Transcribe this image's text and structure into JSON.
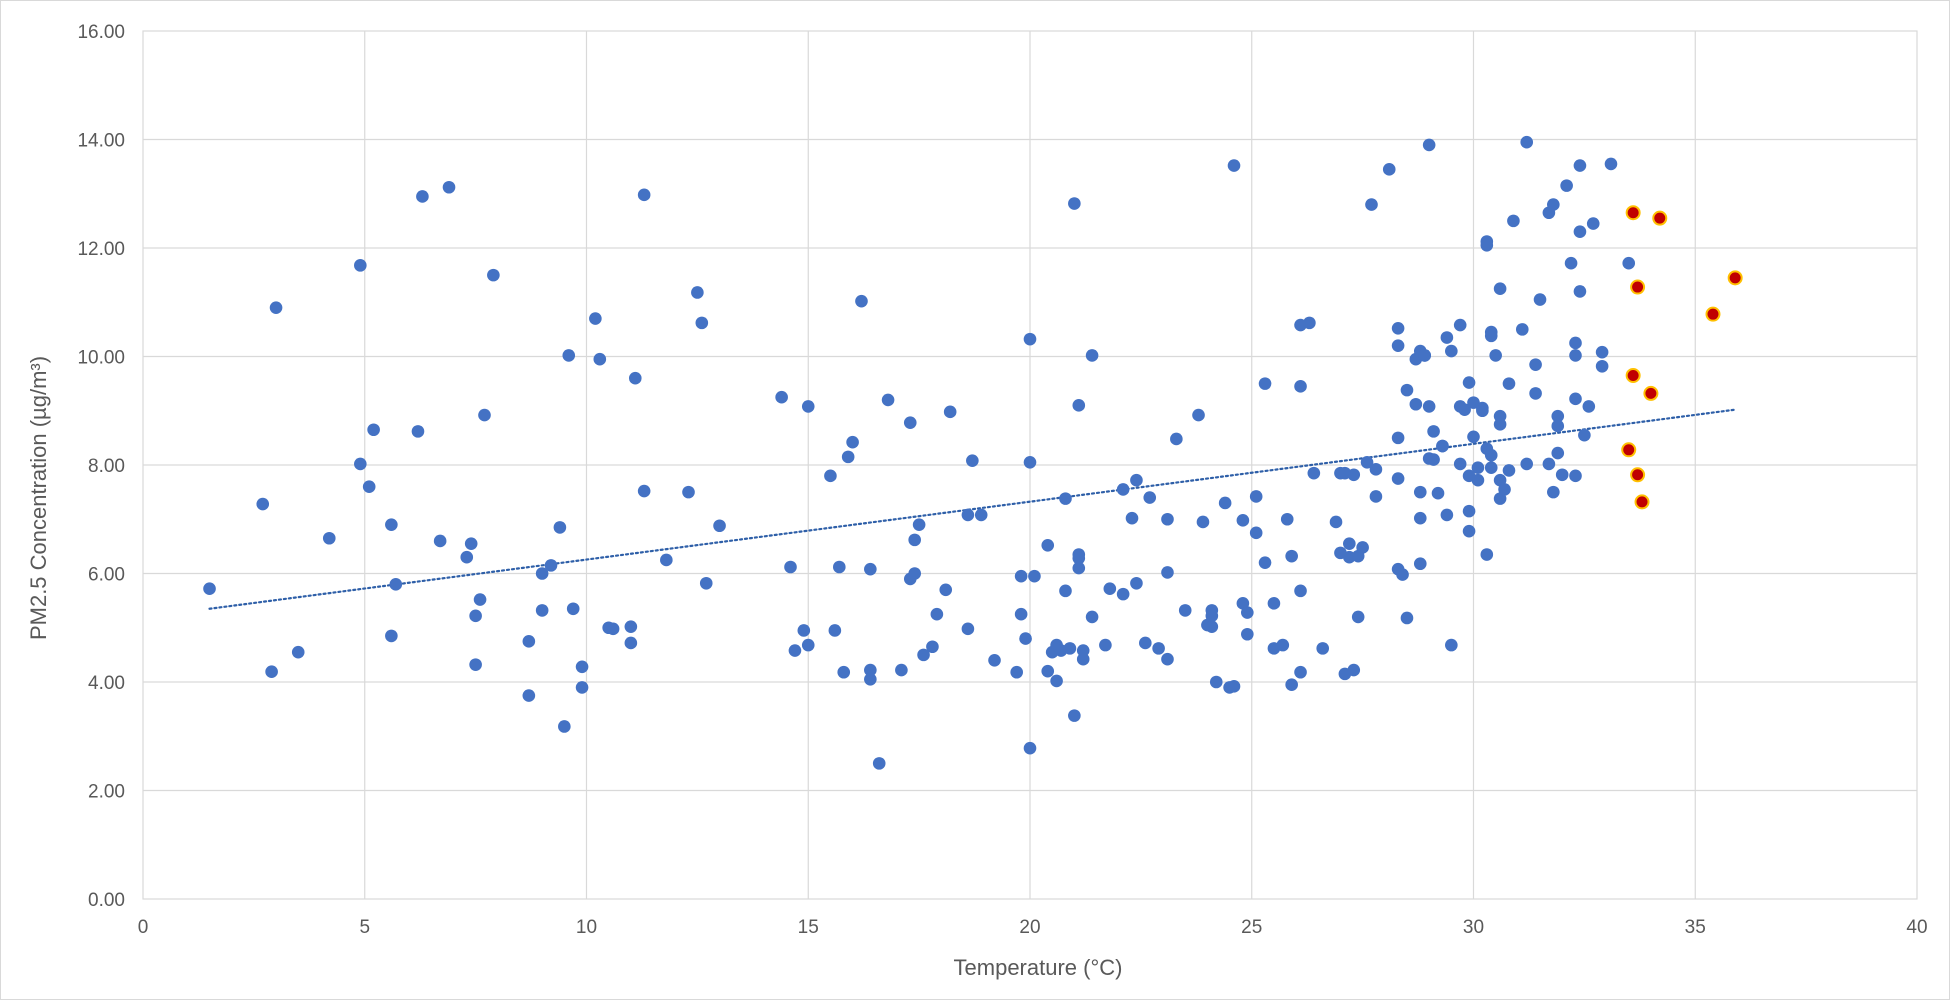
{
  "chart_data": {
    "type": "scatter",
    "title": "",
    "xlabel": "Temperature (°C)",
    "ylabel": "PM2.5 Concentration (µg/m³)",
    "xlim": [
      0,
      40
    ],
    "ylim": [
      0,
      16
    ],
    "x_ticks": [
      "0",
      "5",
      "10",
      "15",
      "20",
      "25",
      "30",
      "35",
      "40"
    ],
    "y_ticks": [
      "0.00",
      "2.00",
      "4.00",
      "6.00",
      "8.00",
      "10.00",
      "12.00",
      "14.00",
      "16.00"
    ],
    "grid": true,
    "legend": "none",
    "colors": {
      "main": "#4472c4",
      "highlight_fill": "#c00000",
      "highlight_edge": "#ffc000",
      "trendline": "#2e5fa8",
      "grid": "#d9d9d9",
      "text": "#595959"
    },
    "trendline": {
      "type": "linear",
      "style": "dotted",
      "x": [
        1.5,
        35.9
      ],
      "y": [
        5.35,
        9.02
      ]
    },
    "series": [
      {
        "points": [
          [
            1.5,
            5.72
          ],
          [
            2.7,
            7.28
          ],
          [
            2.9,
            4.19
          ],
          [
            3.0,
            10.9
          ],
          [
            3.5,
            4.55
          ],
          [
            4.2,
            6.65
          ],
          [
            4.9,
            8.02
          ],
          [
            4.9,
            11.68
          ],
          [
            5.1,
            7.6
          ],
          [
            5.2,
            8.65
          ],
          [
            5.6,
            6.9
          ],
          [
            5.6,
            4.85
          ],
          [
            5.7,
            5.8
          ],
          [
            6.2,
            8.62
          ],
          [
            6.3,
            12.95
          ],
          [
            6.7,
            6.6
          ],
          [
            6.9,
            13.12
          ],
          [
            7.3,
            6.3
          ],
          [
            7.4,
            6.55
          ],
          [
            7.5,
            5.22
          ],
          [
            7.5,
            4.32
          ],
          [
            7.6,
            5.52
          ],
          [
            7.7,
            8.92
          ],
          [
            7.9,
            11.5
          ],
          [
            8.7,
            3.75
          ],
          [
            8.7,
            4.75
          ],
          [
            9.0,
            6.0
          ],
          [
            9.0,
            5.32
          ],
          [
            9.2,
            6.15
          ],
          [
            9.4,
            6.85
          ],
          [
            9.5,
            3.18
          ],
          [
            9.6,
            10.02
          ],
          [
            9.7,
            5.35
          ],
          [
            9.9,
            4.28
          ],
          [
            9.9,
            3.9
          ],
          [
            10.2,
            10.7
          ],
          [
            10.3,
            9.95
          ],
          [
            10.5,
            5.0
          ],
          [
            10.6,
            4.98
          ],
          [
            11.0,
            5.02
          ],
          [
            11.0,
            4.72
          ],
          [
            11.1,
            9.6
          ],
          [
            11.3,
            12.98
          ],
          [
            11.3,
            7.52
          ],
          [
            11.8,
            6.25
          ],
          [
            12.3,
            7.5
          ],
          [
            12.5,
            11.18
          ],
          [
            12.6,
            10.62
          ],
          [
            12.7,
            5.82
          ],
          [
            13.0,
            6.88
          ],
          [
            14.4,
            9.25
          ],
          [
            14.6,
            6.12
          ],
          [
            14.7,
            4.58
          ],
          [
            14.9,
            4.95
          ],
          [
            15.0,
            9.08
          ],
          [
            15.0,
            4.68
          ],
          [
            15.5,
            7.8
          ],
          [
            15.6,
            4.95
          ],
          [
            15.7,
            6.12
          ],
          [
            15.8,
            4.18
          ],
          [
            15.9,
            8.15
          ],
          [
            16.0,
            8.42
          ],
          [
            16.2,
            11.02
          ],
          [
            16.4,
            6.08
          ],
          [
            16.4,
            4.22
          ],
          [
            16.4,
            4.05
          ],
          [
            16.6,
            2.5
          ],
          [
            16.8,
            9.2
          ],
          [
            17.1,
            4.22
          ],
          [
            17.3,
            8.78
          ],
          [
            17.3,
            5.9
          ],
          [
            17.4,
            6.62
          ],
          [
            17.4,
            6.0
          ],
          [
            17.5,
            6.9
          ],
          [
            17.6,
            4.5
          ],
          [
            17.8,
            4.65
          ],
          [
            17.9,
            5.25
          ],
          [
            18.1,
            5.7
          ],
          [
            18.2,
            8.98
          ],
          [
            18.6,
            7.08
          ],
          [
            18.6,
            4.98
          ],
          [
            18.7,
            8.08
          ],
          [
            18.9,
            7.08
          ],
          [
            19.2,
            4.4
          ],
          [
            19.7,
            4.18
          ],
          [
            19.8,
            5.95
          ],
          [
            19.8,
            5.25
          ],
          [
            19.9,
            4.8
          ],
          [
            20.0,
            10.32
          ],
          [
            20.0,
            8.05
          ],
          [
            20.0,
            2.78
          ],
          [
            20.1,
            5.95
          ],
          [
            20.4,
            4.2
          ],
          [
            20.4,
            6.52
          ],
          [
            20.5,
            4.55
          ],
          [
            20.6,
            4.02
          ],
          [
            20.6,
            4.68
          ],
          [
            20.7,
            4.58
          ],
          [
            20.8,
            5.68
          ],
          [
            20.8,
            7.38
          ],
          [
            20.9,
            4.62
          ],
          [
            21.0,
            12.82
          ],
          [
            21.0,
            3.38
          ],
          [
            21.1,
            9.1
          ],
          [
            21.1,
            6.1
          ],
          [
            21.1,
            6.35
          ],
          [
            21.1,
            6.28
          ],
          [
            21.2,
            4.58
          ],
          [
            21.2,
            4.42
          ],
          [
            21.4,
            10.02
          ],
          [
            21.4,
            5.2
          ],
          [
            21.7,
            4.68
          ],
          [
            21.8,
            5.72
          ],
          [
            22.1,
            7.55
          ],
          [
            22.1,
            5.62
          ],
          [
            22.3,
            7.02
          ],
          [
            22.4,
            7.72
          ],
          [
            22.4,
            5.82
          ],
          [
            22.6,
            4.72
          ],
          [
            22.7,
            7.4
          ],
          [
            22.9,
            4.62
          ],
          [
            23.1,
            6.02
          ],
          [
            23.1,
            4.42
          ],
          [
            23.1,
            7.0
          ],
          [
            23.3,
            8.48
          ],
          [
            23.5,
            5.32
          ],
          [
            23.8,
            8.92
          ],
          [
            23.9,
            6.95
          ],
          [
            24.0,
            5.05
          ],
          [
            24.1,
            5.22
          ],
          [
            24.1,
            5.32
          ],
          [
            24.1,
            5.02
          ],
          [
            24.2,
            4.0
          ],
          [
            24.4,
            7.3
          ],
          [
            24.5,
            3.9
          ],
          [
            24.6,
            3.92
          ],
          [
            24.6,
            13.52
          ],
          [
            24.8,
            6.98
          ],
          [
            24.8,
            5.45
          ],
          [
            24.9,
            5.28
          ],
          [
            24.9,
            4.88
          ],
          [
            25.1,
            7.42
          ],
          [
            25.1,
            6.75
          ],
          [
            25.3,
            9.5
          ],
          [
            25.3,
            6.2
          ],
          [
            25.5,
            5.45
          ],
          [
            25.5,
            4.62
          ],
          [
            25.7,
            4.68
          ],
          [
            25.8,
            7.0
          ],
          [
            25.9,
            6.32
          ],
          [
            25.9,
            3.95
          ],
          [
            26.1,
            10.58
          ],
          [
            26.1,
            9.45
          ],
          [
            26.1,
            5.68
          ],
          [
            26.1,
            4.18
          ],
          [
            26.3,
            10.62
          ],
          [
            26.4,
            7.85
          ],
          [
            26.6,
            4.62
          ],
          [
            26.9,
            6.95
          ],
          [
            27.0,
            7.85
          ],
          [
            27.0,
            6.38
          ],
          [
            27.1,
            4.15
          ],
          [
            27.1,
            7.85
          ],
          [
            27.2,
            6.55
          ],
          [
            27.2,
            6.3
          ],
          [
            27.3,
            4.22
          ],
          [
            27.3,
            7.82
          ],
          [
            27.4,
            6.32
          ],
          [
            27.4,
            5.2
          ],
          [
            27.5,
            6.48
          ],
          [
            27.6,
            8.05
          ],
          [
            27.7,
            12.8
          ],
          [
            27.8,
            7.42
          ],
          [
            27.8,
            7.92
          ],
          [
            28.1,
            13.45
          ],
          [
            28.3,
            10.52
          ],
          [
            28.3,
            10.2
          ],
          [
            28.3,
            8.5
          ],
          [
            28.3,
            6.08
          ],
          [
            28.3,
            7.75
          ],
          [
            28.4,
            5.98
          ],
          [
            28.5,
            9.38
          ],
          [
            28.5,
            5.18
          ],
          [
            28.7,
            9.95
          ],
          [
            28.7,
            9.12
          ],
          [
            28.8,
            10.1
          ],
          [
            28.8,
            6.18
          ],
          [
            28.8,
            7.02
          ],
          [
            28.8,
            7.5
          ],
          [
            28.9,
            10.02
          ],
          [
            28.9,
            10.02
          ],
          [
            29.0,
            13.9
          ],
          [
            29.0,
            9.08
          ],
          [
            29.0,
            8.12
          ],
          [
            29.1,
            8.62
          ],
          [
            29.1,
            8.1
          ],
          [
            29.2,
            7.48
          ],
          [
            29.3,
            8.35
          ],
          [
            29.3,
            8.35
          ],
          [
            29.4,
            10.35
          ],
          [
            29.4,
            7.08
          ],
          [
            29.5,
            10.1
          ],
          [
            29.5,
            4.68
          ],
          [
            29.7,
            9.08
          ],
          [
            29.7,
            8.02
          ],
          [
            29.7,
            10.58
          ],
          [
            29.8,
            9.02
          ],
          [
            29.9,
            7.15
          ],
          [
            29.9,
            7.8
          ],
          [
            29.9,
            6.78
          ],
          [
            29.9,
            9.52
          ],
          [
            30.0,
            9.15
          ],
          [
            30.0,
            8.52
          ],
          [
            30.1,
            7.72
          ],
          [
            30.1,
            7.95
          ],
          [
            30.2,
            9.05
          ],
          [
            30.2,
            9.0
          ],
          [
            30.3,
            6.35
          ],
          [
            30.3,
            12.12
          ],
          [
            30.3,
            12.05
          ],
          [
            30.3,
            8.3
          ],
          [
            30.4,
            10.45
          ],
          [
            30.4,
            10.38
          ],
          [
            30.4,
            8.18
          ],
          [
            30.4,
            7.95
          ],
          [
            30.5,
            10.02
          ],
          [
            30.6,
            7.38
          ],
          [
            30.6,
            8.9
          ],
          [
            30.6,
            8.75
          ],
          [
            30.6,
            7.72
          ],
          [
            30.6,
            11.25
          ],
          [
            30.7,
            7.55
          ],
          [
            30.8,
            9.5
          ],
          [
            30.9,
            12.5
          ],
          [
            30.8,
            7.9
          ],
          [
            31.1,
            10.5
          ],
          [
            31.2,
            13.95
          ],
          [
            31.2,
            8.02
          ],
          [
            31.4,
            9.85
          ],
          [
            31.4,
            9.32
          ],
          [
            31.5,
            11.05
          ],
          [
            31.7,
            12.65
          ],
          [
            31.7,
            8.02
          ],
          [
            31.8,
            7.5
          ],
          [
            31.8,
            12.8
          ],
          [
            31.9,
            8.72
          ],
          [
            31.9,
            8.9
          ],
          [
            31.9,
            8.22
          ],
          [
            32.0,
            7.82
          ],
          [
            32.1,
            13.15
          ],
          [
            32.2,
            11.72
          ],
          [
            32.3,
            10.25
          ],
          [
            32.3,
            10.02
          ],
          [
            32.3,
            9.22
          ],
          [
            32.3,
            7.8
          ],
          [
            32.4,
            12.3
          ],
          [
            32.4,
            13.52
          ],
          [
            32.4,
            11.2
          ],
          [
            32.5,
            8.55
          ],
          [
            32.6,
            9.08
          ],
          [
            32.7,
            12.45
          ],
          [
            32.9,
            10.08
          ],
          [
            32.9,
            9.82
          ],
          [
            33.1,
            13.55
          ],
          [
            33.5,
            11.72
          ]
        ]
      },
      {
        "highlight": true,
        "points": [
          [
            33.6,
            12.65
          ],
          [
            34.2,
            12.55
          ],
          [
            33.7,
            11.28
          ],
          [
            35.9,
            11.45
          ],
          [
            35.4,
            10.78
          ],
          [
            33.6,
            9.65
          ],
          [
            34.0,
            9.32
          ],
          [
            33.5,
            8.28
          ],
          [
            33.7,
            7.82
          ],
          [
            33.8,
            7.32
          ]
        ]
      }
    ]
  }
}
